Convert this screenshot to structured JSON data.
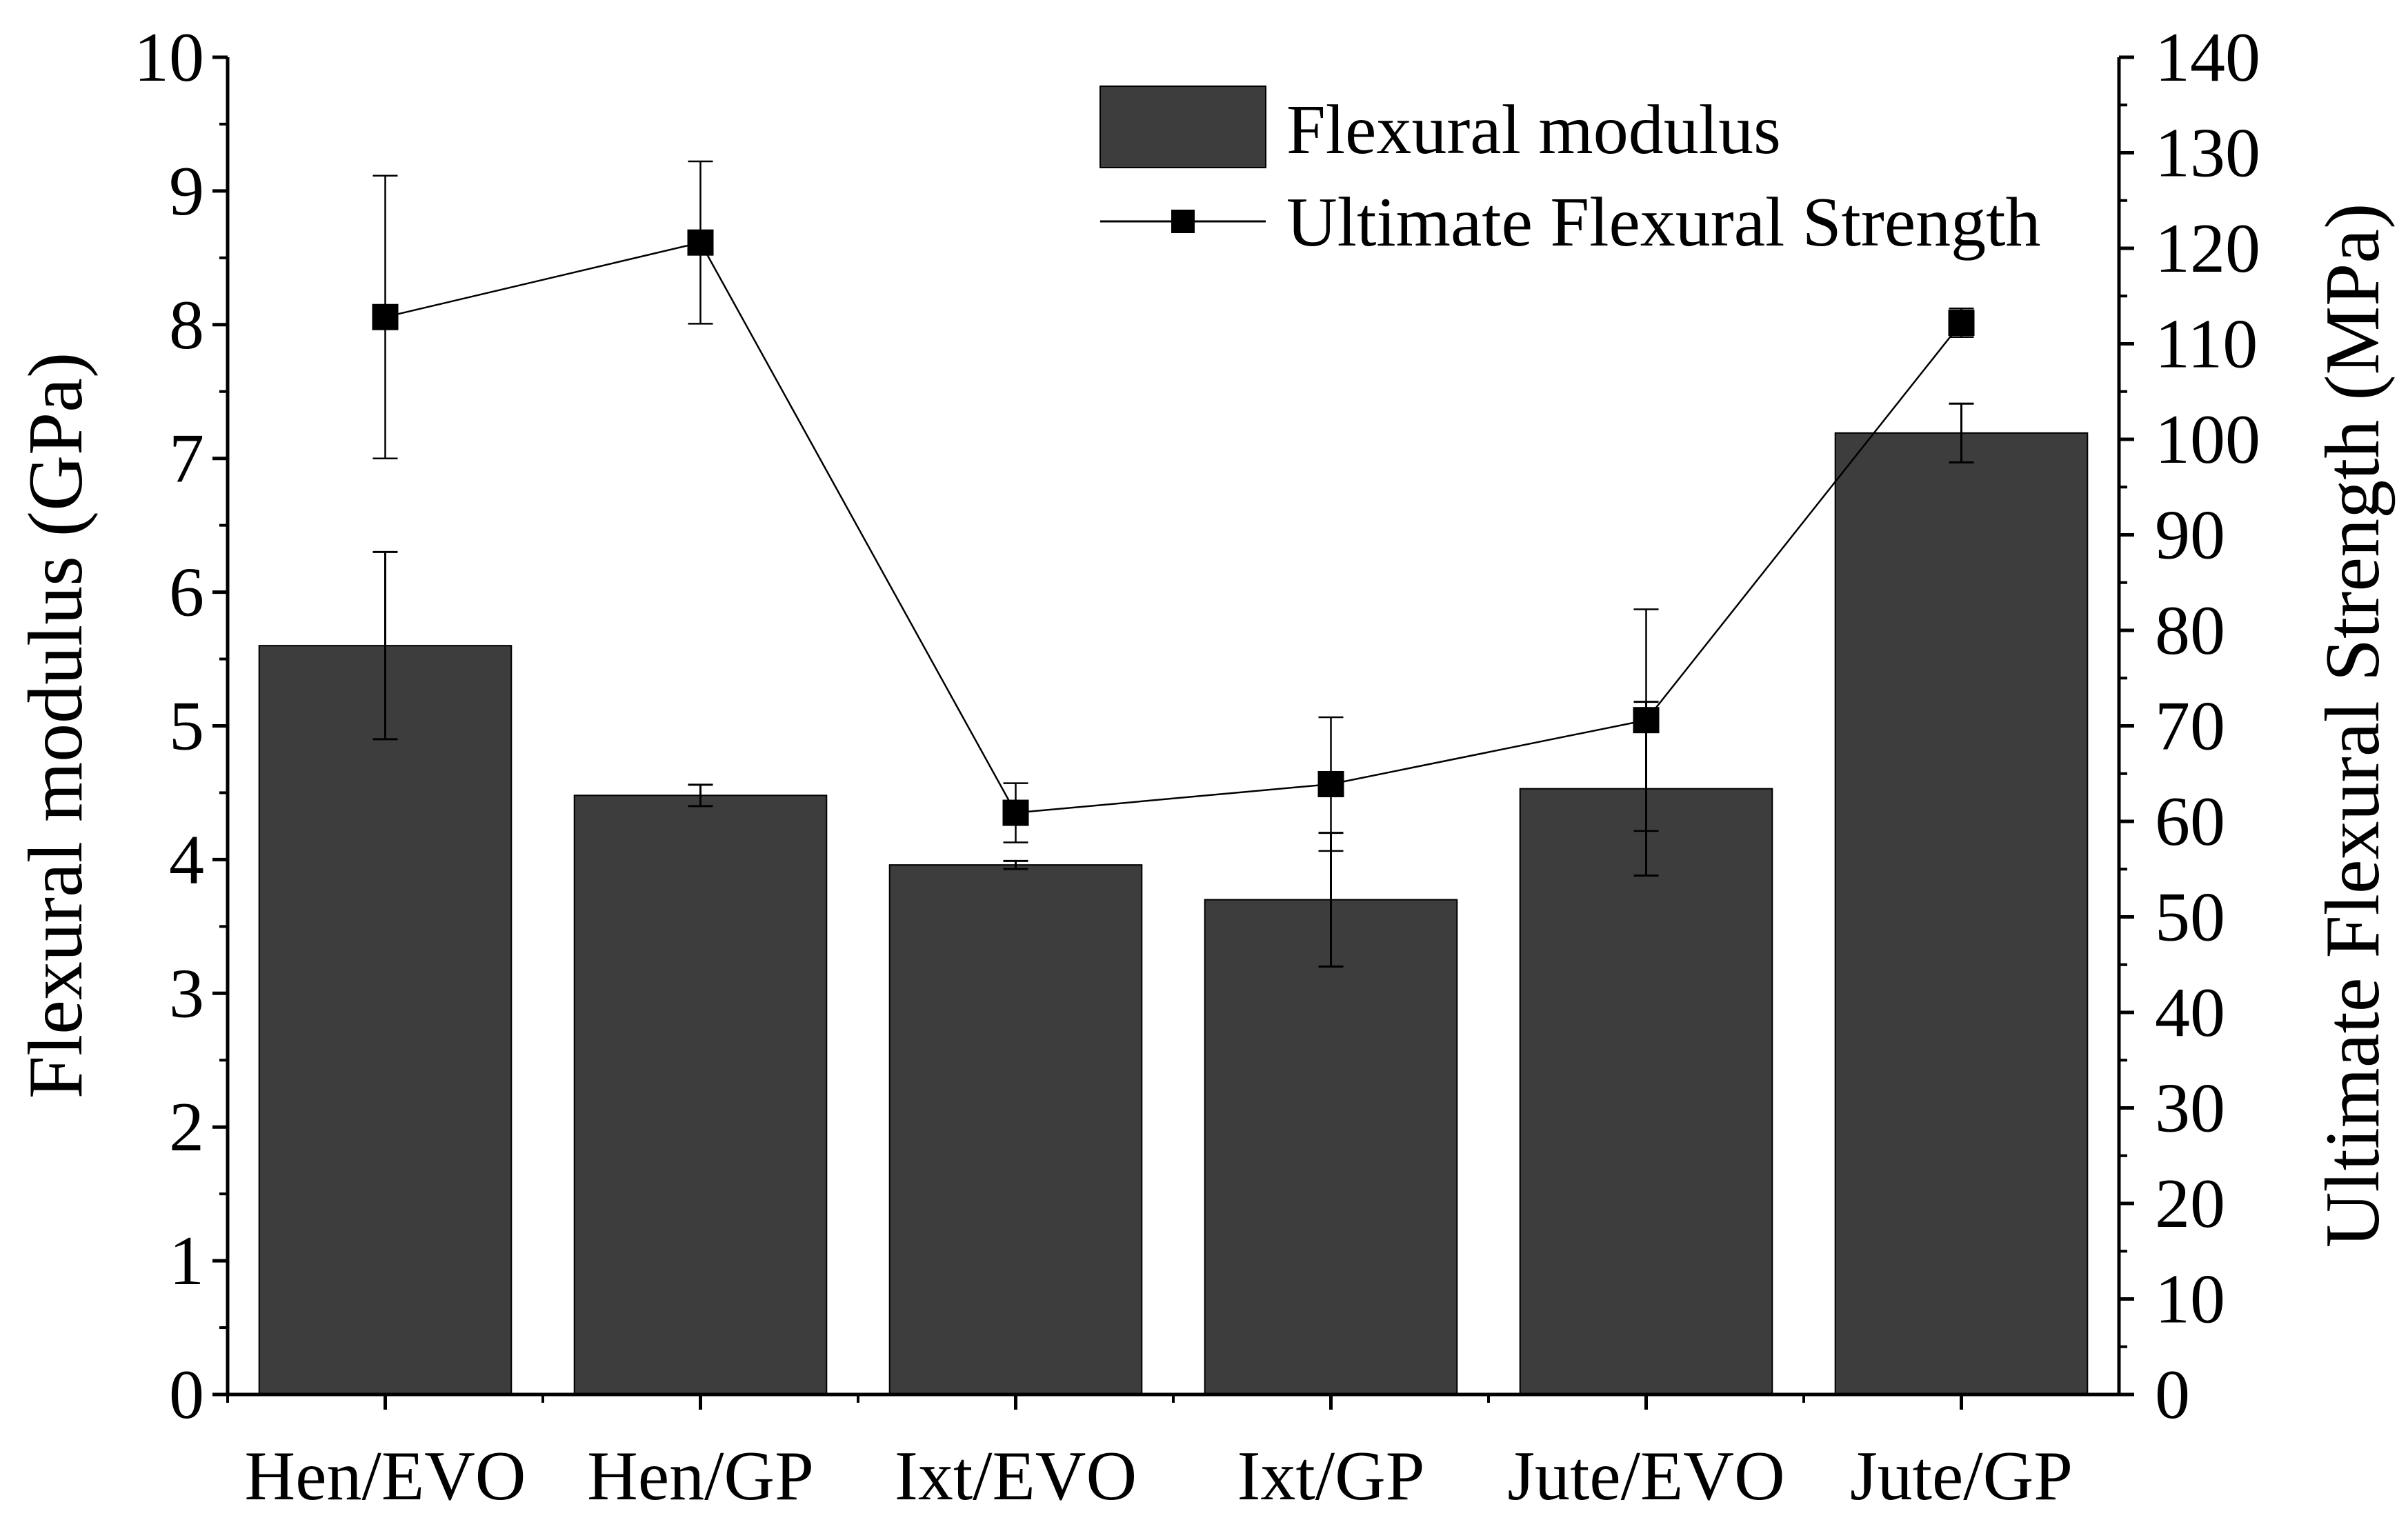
{
  "chart_data": {
    "type": "bar+line",
    "categories": [
      "Hen/EVO",
      "Hen/GP",
      "Ixt/EVO",
      "Ixt/GP",
      "Jute/EVO",
      "Jute/GP"
    ],
    "series": [
      {
        "name": "Flexural modulus",
        "type": "bar",
        "axis": "left",
        "values": [
          5.6,
          4.48,
          3.96,
          3.7,
          4.53,
          7.19
        ],
        "errors": [
          0.7,
          0.08,
          0.03,
          0.5,
          0.65,
          0.22
        ],
        "color": "#3d3d3d"
      },
      {
        "name": "Ultimate Flexural Strength",
        "type": "line",
        "axis": "right",
        "values": [
          112.8,
          120.6,
          60.9,
          63.9,
          70.6,
          112.2
        ],
        "errors": [
          14.8,
          8.5,
          3.1,
          7.0,
          11.6,
          1.5
        ],
        "marker": "square",
        "color": "#000000"
      }
    ],
    "ylabel_left": "Flexural modulus (GPa)",
    "ylabel_right": "Ultimate Flexural Strength (MPa)",
    "ylim_left": [
      0,
      10
    ],
    "ylim_right": [
      0,
      140
    ],
    "yticks_left": [
      "0",
      "1",
      "2",
      "3",
      "4",
      "5",
      "6",
      "7",
      "8",
      "9",
      "10"
    ],
    "yticks_right": [
      "0",
      "10",
      "20",
      "30",
      "40",
      "50",
      "60",
      "70",
      "80",
      "90",
      "100",
      "110",
      "120",
      "130",
      "140"
    ],
    "legend": [
      "Flexural modulus",
      "Ultimate Flexural Strength"
    ],
    "legend_position": "top-right",
    "grid": false
  }
}
